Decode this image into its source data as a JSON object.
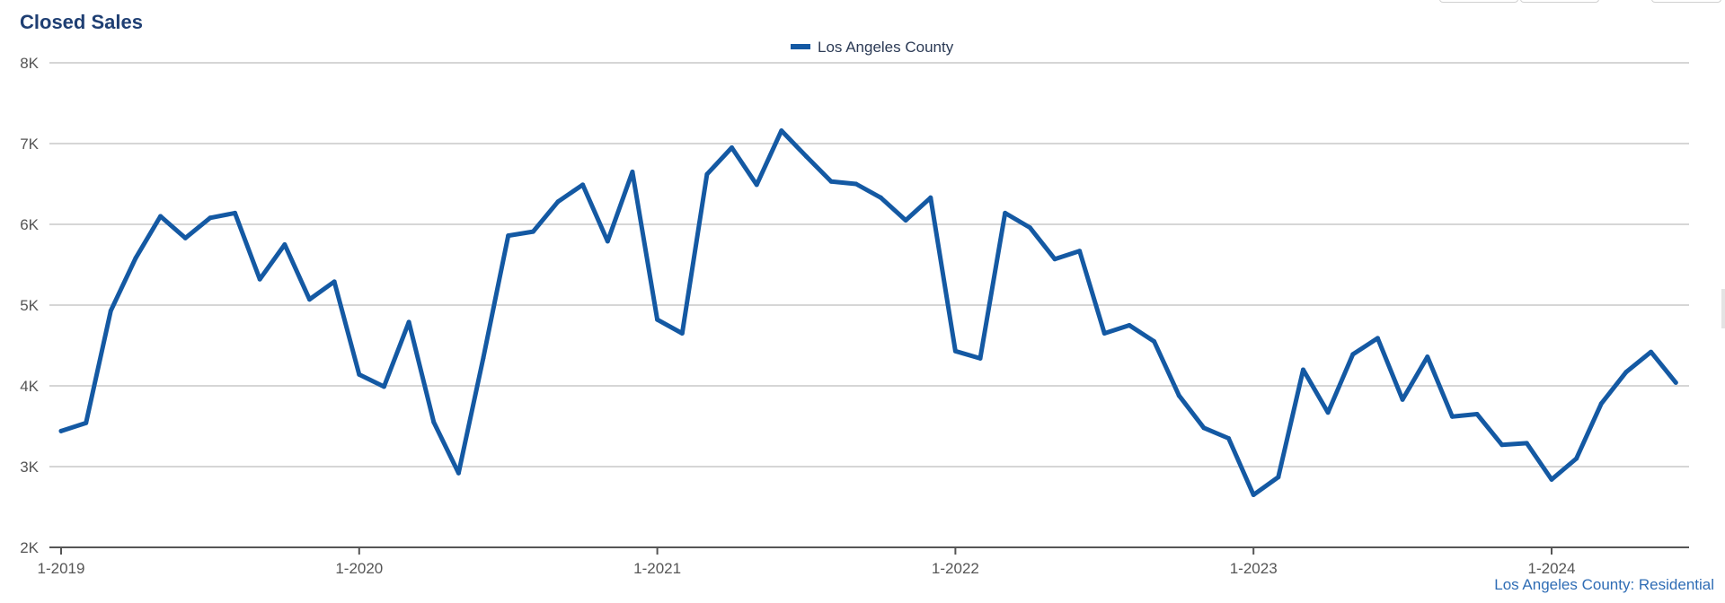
{
  "title": "Closed Sales",
  "source_label": "Los Angeles County: Residential",
  "colors": {
    "series": "#1459a3",
    "grid": "#c8c8c8",
    "axis": "#555555",
    "title": "#1f3f73",
    "tick_text": "#555555"
  },
  "chart_data": {
    "type": "line",
    "title": "Closed Sales",
    "xlabel": "",
    "ylabel": "",
    "ylim": [
      2000,
      8000
    ],
    "yticks": [
      {
        "value": 2000,
        "label": "2K"
      },
      {
        "value": 3000,
        "label": "3K"
      },
      {
        "value": 4000,
        "label": "4K"
      },
      {
        "value": 5000,
        "label": "5K"
      },
      {
        "value": 6000,
        "label": "6K"
      },
      {
        "value": 7000,
        "label": "7K"
      },
      {
        "value": 8000,
        "label": "8K"
      }
    ],
    "xticks": [
      {
        "index": 0,
        "label": "1-2019"
      },
      {
        "index": 12,
        "label": "1-2020"
      },
      {
        "index": 24,
        "label": "1-2021"
      },
      {
        "index": 36,
        "label": "1-2022"
      },
      {
        "index": 48,
        "label": "1-2023"
      },
      {
        "index": 60,
        "label": "1-2024"
      }
    ],
    "x_range": [
      0,
      65
    ],
    "legend": "top-center",
    "grid": true,
    "series": [
      {
        "name": "Los Angeles County",
        "values": [
          3440,
          3540,
          4930,
          5580,
          6100,
          5830,
          6080,
          6140,
          5320,
          5750,
          5070,
          5290,
          4140,
          3990,
          4790,
          3550,
          2920,
          4350,
          5860,
          5910,
          6280,
          6490,
          5790,
          6650,
          4820,
          4650,
          6620,
          6950,
          6490,
          7160,
          6840,
          6530,
          6500,
          6330,
          6050,
          6330,
          4430,
          4340,
          6140,
          5960,
          5570,
          5670,
          4650,
          4750,
          4550,
          3880,
          3480,
          3350,
          2650,
          2870,
          4200,
          3670,
          4390,
          4590,
          3830,
          4360,
          3620,
          3650,
          3270,
          3290,
          2840,
          3100,
          3780,
          4170,
          4420,
          4040
        ]
      }
    ]
  }
}
